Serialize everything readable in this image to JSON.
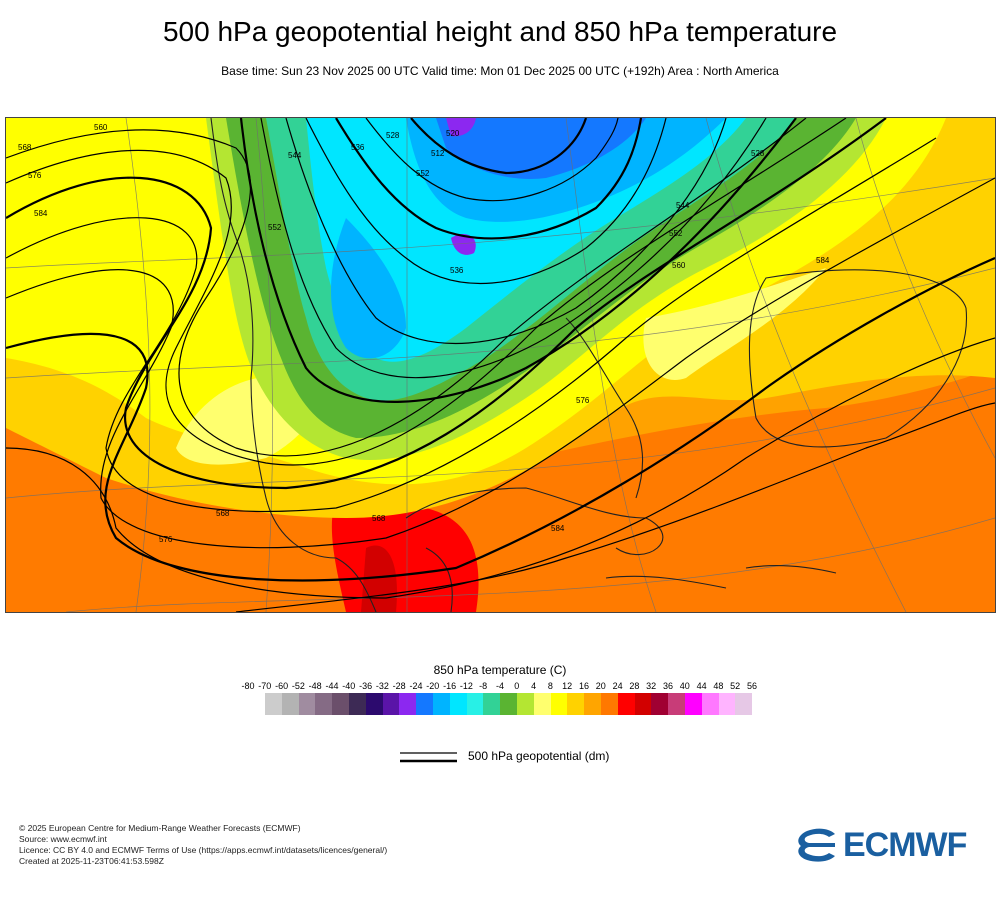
{
  "title": "500 hPa geopotential height and 850 hPa temperature",
  "subtitle": "Base time: Sun 23 Nov 2025 00 UTC Valid time: Mon 01 Dec 2025 00 UTC (+192h) Area : North America",
  "map": {
    "contour_labels": [
      "560",
      "568",
      "576",
      "584",
      "552",
      "544",
      "536",
      "528",
      "520",
      "512",
      "552",
      "536",
      "528",
      "544",
      "552",
      "560",
      "568",
      "584",
      "576",
      "576",
      "568",
      "584"
    ]
  },
  "legend": {
    "title": "850 hPa temperature (C)",
    "ticks": [
      "-80",
      "-70",
      "-60",
      "-52",
      "-48",
      "-44",
      "-40",
      "-36",
      "-32",
      "-28",
      "-24",
      "-20",
      "-16",
      "-12",
      "-8",
      "-4",
      "0",
      "4",
      "8",
      "12",
      "16",
      "20",
      "24",
      "28",
      "32",
      "36",
      "40",
      "44",
      "48",
      "52",
      "56"
    ],
    "colors": [
      "#e6e6e6",
      "#cccccc",
      "#b3b3b3",
      "#a08ca0",
      "#856b85",
      "#6b4f6b",
      "#3d2a55",
      "#2c0a6e",
      "#5a14a8",
      "#8c28f0",
      "#1478ff",
      "#00b4ff",
      "#00e6ff",
      "#28f0e6",
      "#32d296",
      "#5ab432",
      "#b4e632",
      "#ffff6e",
      "#ffff00",
      "#ffd200",
      "#ffa500",
      "#ff7800",
      "#ff0000",
      "#d20000",
      "#a00032",
      "#c83c78",
      "#ff00ff",
      "#ff78ff",
      "#ffb4ff",
      "#e6c8e6",
      "#e1e1e1"
    ],
    "line_label": "500 hPa geopotential (dm)"
  },
  "footer": {
    "line1": "© 2025 European Centre for Medium-Range Weather Forecasts (ECMWF)",
    "line2": "Source: www.ecmwf.int",
    "line3": "Licence: CC BY 4.0 and ECMWF Terms of Use (https://apps.ecmwf.int/datasets/licences/general/)",
    "line4": "Created at 2025-11-23T06:41:53.598Z"
  },
  "logo": {
    "text": "ECMWF",
    "color": "#1a5fa0"
  }
}
